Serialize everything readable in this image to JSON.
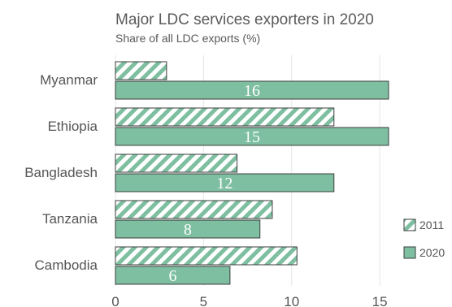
{
  "chart_data": {
    "type": "bar",
    "orientation": "horizontal",
    "title": "Major LDC services exporters in 2020",
    "subtitle": "Share of all LDC exports (%)",
    "categories": [
      "Myanmar",
      "Ethiopia",
      "Bangladesh",
      "Tanzania",
      "Cambodia"
    ],
    "series": [
      {
        "name": "2011",
        "values": [
          2.9,
          12.4,
          6.9,
          8.9,
          10.3
        ],
        "color": "#7dbfa0",
        "pattern": "hatched"
      },
      {
        "name": "2020",
        "values": [
          15.5,
          15.5,
          12.4,
          8.2,
          6.5
        ],
        "color": "#7dbfa0",
        "pattern": "solid"
      }
    ],
    "data_labels": {
      "2020": [
        "16",
        "15",
        "12",
        "8",
        "6"
      ]
    },
    "x_ticks": [
      "0",
      "5",
      "10",
      "15"
    ],
    "xlim": [
      0,
      17.3
    ],
    "grid": true,
    "legend_position": "right"
  }
}
